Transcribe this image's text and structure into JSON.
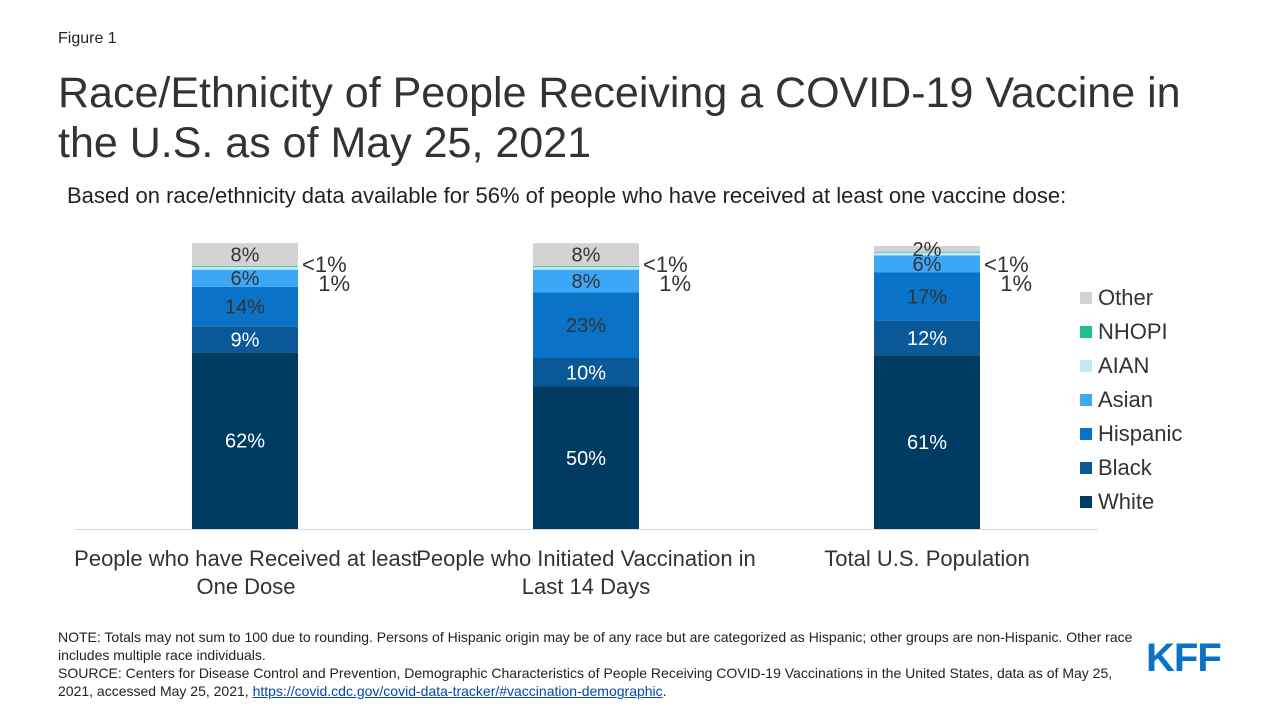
{
  "figure_label": "Figure 1",
  "chart_data": {
    "type": "bar",
    "stacked": true,
    "title": "Race/Ethnicity of People Receiving a COVID-19 Vaccine in the U.S. as of May 25, 2021",
    "subtitle": "Based on race/ethnicity data available for 56% of people who have received at least one vaccine dose:",
    "categories": [
      "People who have Received at least One Dose",
      "People who Initiated Vaccination in Last 14 Days",
      "Total U.S. Population"
    ],
    "legend_position": "right",
    "series": [
      {
        "name": "White",
        "color": "#003b63",
        "values": [
          62,
          50,
          61
        ],
        "labels": [
          "62%",
          "50%",
          "61%"
        ]
      },
      {
        "name": "Black",
        "color": "#0b5899",
        "values": [
          9,
          10,
          12
        ],
        "labels": [
          "9%",
          "10%",
          "12%"
        ]
      },
      {
        "name": "Hispanic",
        "color": "#0a73c7",
        "values": [
          14,
          23,
          17
        ],
        "labels": [
          "14%",
          "23%",
          "17%"
        ]
      },
      {
        "name": "Asian",
        "color": "#3ca8f5",
        "values": [
          6,
          8,
          6
        ],
        "labels": [
          "6%",
          "8%",
          "6%"
        ]
      },
      {
        "name": "AIAN",
        "color": "#c6e6fa",
        "values": [
          1,
          1,
          1
        ],
        "labels": [
          "1%",
          "1%",
          "1%"
        ]
      },
      {
        "name": "NHOPI",
        "color": "#1fbf8f",
        "values": [
          0.3,
          0.3,
          0.3
        ],
        "labels": [
          "<1%",
          "<1%",
          "<1%"
        ]
      },
      {
        "name": "Other",
        "color": "#d3d3d3",
        "values": [
          8,
          8,
          2
        ],
        "labels": [
          "8%",
          "8%",
          "2%"
        ]
      }
    ]
  },
  "note": "NOTE: Totals may not sum to 100 due to rounding. Persons of Hispanic origin may be of any race but are categorized as Hispanic; other groups are non-Hispanic. Other race includes multiple race individuals.",
  "source": "SOURCE: Centers for Disease Control and Prevention, Demographic Characteristics of People Receiving COVID-19 Vaccinations in the United States, data as of May 25, 2021, accessed May 25, 2021, ",
  "source_link": "https://covid.cdc.gov/covid-data-tracker/#vaccination-demographic",
  "source_end": ".",
  "logo": "KFF"
}
